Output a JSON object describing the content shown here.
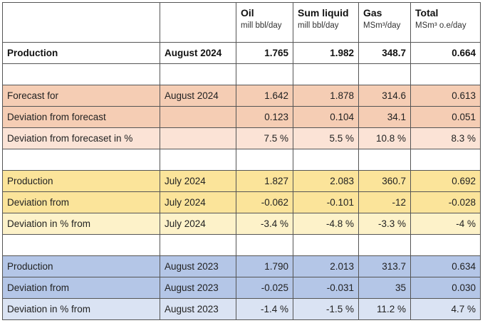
{
  "columns": [
    {
      "name": "",
      "unit": ""
    },
    {
      "name": "",
      "unit": ""
    },
    {
      "name": "Oil",
      "unit": "mill bbl/day"
    },
    {
      "name": "Sum liquid",
      "unit": "mill bbl/day"
    },
    {
      "name": "Gas",
      "unit": "MSm³/day"
    },
    {
      "name": "Total",
      "unit": "MSm³ o.e/day"
    }
  ],
  "production": {
    "label": "Production",
    "period": "August 2024",
    "oil": "1.765",
    "liquid": "1.982",
    "gas": "348.7",
    "total": "0.664"
  },
  "forecast_group": [
    {
      "label": "Forecast for",
      "period": "August 2024",
      "oil": "1.642",
      "liquid": "1.878",
      "gas": "314.6",
      "total": "0.613"
    },
    {
      "label": "Deviation from forecast",
      "period": "",
      "oil": "0.123",
      "liquid": "0.104",
      "gas": "34.1",
      "total": "0.051"
    },
    {
      "label": "Deviation from forecaset in %",
      "period": "",
      "oil": "7.5 %",
      "liquid": "5.5 %",
      "gas": "10.8 %",
      "total": "8.3 %"
    }
  ],
  "previous_month_group": [
    {
      "label": "Production",
      "period": "July 2024",
      "oil": "1.827",
      "liquid": "2.083",
      "gas": "360.7",
      "total": "0.692"
    },
    {
      "label": "Deviation from",
      "period": "July 2024",
      "oil": "-0.062",
      "liquid": "-0.101",
      "gas": "-12",
      "total": "-0.028"
    },
    {
      "label": "Deviation in % from",
      "period": "July 2024",
      "oil": "-3.4 %",
      "liquid": "-4.8 %",
      "gas": "-3.3 %",
      "total": "-4 %"
    }
  ],
  "previous_year_group": [
    {
      "label": "Production",
      "period": "August 2023",
      "oil": "1.790",
      "liquid": "2.013",
      "gas": "313.7",
      "total": "0.634"
    },
    {
      "label": "Deviation from",
      "period": "August 2023",
      "oil": "-0.025",
      "liquid": "-0.031",
      "gas": "35",
      "total": "0.030"
    },
    {
      "label": "Deviation in % from",
      "period": "August 2023",
      "oil": "-1.4 %",
      "liquid": "-1.5 %",
      "gas": "11.2 %",
      "total": "4.7 %"
    }
  ],
  "colors": {
    "orange_dark": "#f5cdb4",
    "orange_light": "#fbe3d6",
    "yellow_dark": "#fbe49a",
    "yellow_light": "#fdf2c9",
    "blue_dark": "#b4c6e7",
    "blue_light": "#dae3f3",
    "border": "#555555"
  }
}
